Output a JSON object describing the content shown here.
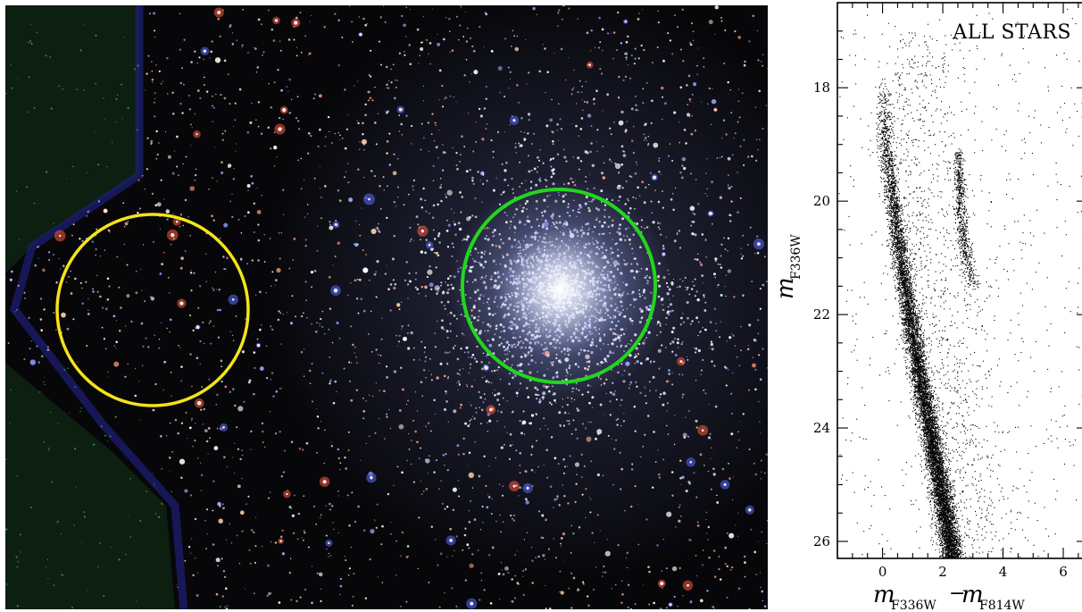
{
  "image_panel": {
    "circles": [
      {
        "name": "field-region",
        "color": "#f5e31a"
      },
      {
        "name": "cluster-center",
        "color": "#22d61e"
      }
    ],
    "colors": {
      "background": "#07070a",
      "field_tint": "#0f2a12",
      "edge_band": "#1a1a6a"
    }
  },
  "chart_data": {
    "type": "scatter",
    "panel_label": "ALL STARS",
    "xlabel": {
      "base1": "m",
      "sub1": "F336W",
      "sep": "−",
      "base2": "m",
      "sub2": "F814W"
    },
    "ylabel": {
      "base": "m",
      "sub": "F336W"
    },
    "xlim": [
      -1.5,
      6.8
    ],
    "ylim": [
      26.3,
      16.5
    ],
    "y_inverted": true,
    "xticks_major": [
      0,
      2,
      4,
      6
    ],
    "xtick_labels": [
      "0",
      "2",
      "4",
      "6"
    ],
    "yticks_major": [
      18,
      20,
      22,
      24,
      26
    ],
    "ytick_labels": [
      "18",
      "20",
      "22",
      "24",
      "26"
    ],
    "point_color": "#000000",
    "sequences": [
      {
        "name": "main-sequence",
        "ridge": [
          [
            0.0,
            17.8
          ],
          [
            0.1,
            19.0
          ],
          [
            0.6,
            21.0
          ],
          [
            1.2,
            23.0
          ],
          [
            1.9,
            25.0
          ],
          [
            2.3,
            26.3
          ]
        ],
        "width": [
          0.25,
          0.35
        ]
      },
      {
        "name": "secondary-sequence",
        "ridge": [
          [
            2.5,
            19.1
          ],
          [
            2.6,
            20.2
          ],
          [
            2.7,
            20.8
          ],
          [
            3.0,
            21.5
          ]
        ],
        "width": [
          0.15,
          0.25
        ]
      }
    ]
  }
}
